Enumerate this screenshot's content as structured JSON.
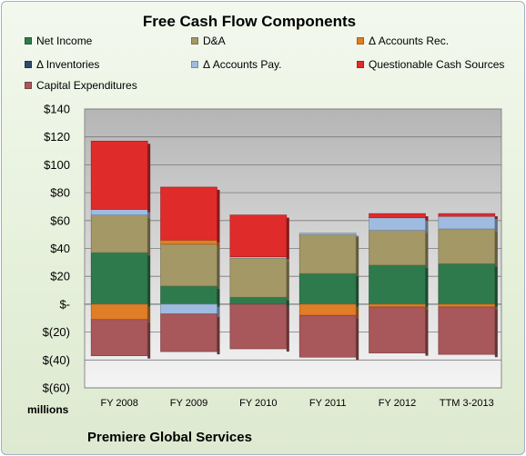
{
  "chart_data": {
    "type": "bar",
    "stacked": true,
    "title": "Free Cash Flow Components",
    "categories": [
      "FY 2008",
      "FY 2009",
      "FY 2010",
      "FY 2011",
      "FY 2012",
      "TTM 3-2013"
    ],
    "series": [
      {
        "name": "Net Income",
        "color": "#2f7a4c",
        "values": [
          37,
          13,
          5,
          22,
          28,
          29
        ]
      },
      {
        "name": "D&A",
        "color": "#a39866",
        "values": [
          27,
          30,
          28,
          28,
          25,
          25
        ]
      },
      {
        "name": "Δ Accounts Rec.",
        "color": "#e07d27",
        "values": [
          -11,
          3,
          0,
          -8,
          -2,
          -2
        ]
      },
      {
        "name": "Δ Inventories",
        "color": "#2e4a6e",
        "values": [
          0,
          0,
          0,
          0,
          0,
          0
        ]
      },
      {
        "name": "Δ Accounts Pay.",
        "color": "#9fbbdf",
        "values": [
          4,
          -7,
          1,
          1,
          9,
          9
        ]
      },
      {
        "name": "Questionable Cash Sources",
        "color": "#e02b2b",
        "values": [
          49,
          38,
          30,
          0,
          3,
          2
        ]
      },
      {
        "name": "Capital Expenditures",
        "color": "#a8575a",
        "values": [
          -26,
          -27,
          -32,
          -30,
          -33,
          -34
        ]
      }
    ],
    "ylim": [
      -60,
      140
    ],
    "ytick_step": 20,
    "ytick_labels": [
      "$(60)",
      "$(40)",
      "$(20)",
      "$-",
      "$20",
      "$40",
      "$60",
      "$80",
      "$100",
      "$120",
      "$140"
    ],
    "ylabel": "millions",
    "xlabel": "",
    "grid": true,
    "legend_position": "top"
  },
  "footer": {
    "company": "Premiere Global Services"
  }
}
